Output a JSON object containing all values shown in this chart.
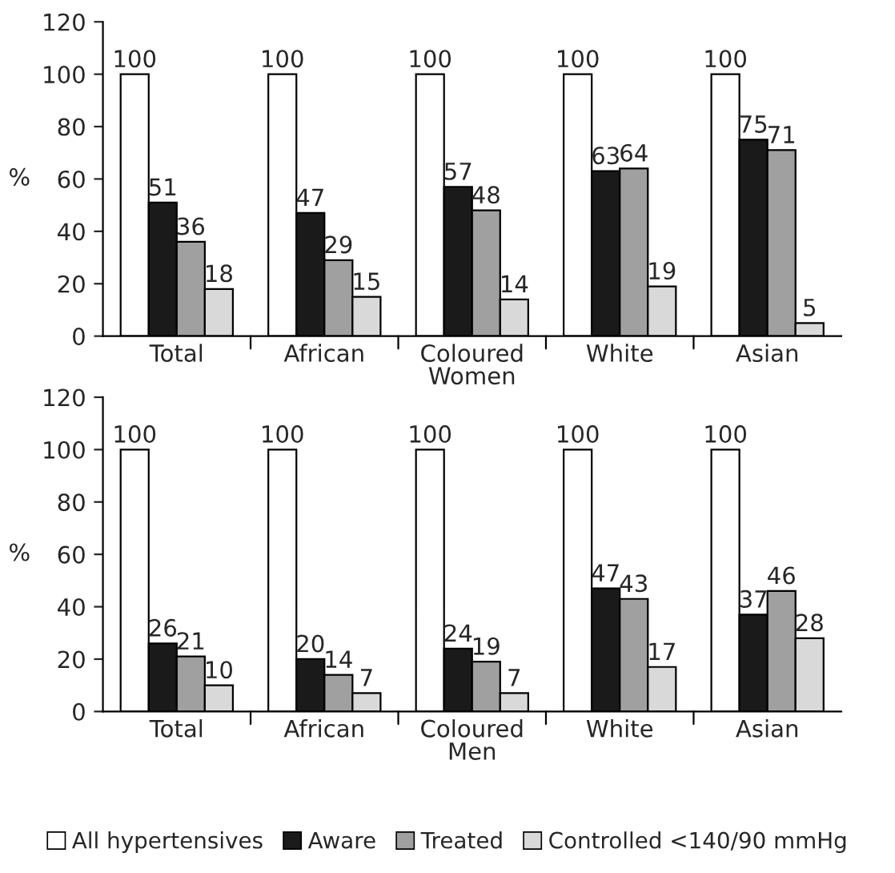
{
  "chart_data": [
    {
      "type": "bar",
      "xlabel": "Women",
      "ylabel": "%",
      "categories": [
        "Total",
        "African",
        "Coloured",
        "White",
        "Asian"
      ],
      "ylim": [
        0,
        120
      ],
      "yticks": [
        0,
        20,
        40,
        60,
        80,
        100,
        120
      ],
      "data_labels": true,
      "legend": false,
      "grid": false,
      "series": [
        {
          "color": "#ffffff",
          "values": [
            100,
            100,
            100,
            100,
            100
          ]
        },
        {
          "color": "#1a1a1a",
          "values": [
            51,
            47,
            57,
            63,
            75
          ]
        },
        {
          "color": "#a0a0a0",
          "values": [
            36,
            29,
            48,
            64,
            71
          ]
        },
        {
          "color": "#d9d9d9",
          "values": [
            18,
            15,
            14,
            19,
            5
          ]
        }
      ]
    },
    {
      "type": "bar",
      "xlabel": "Men",
      "ylabel": "%",
      "categories": [
        "Total",
        "African",
        "Coloured",
        "White",
        "Asian"
      ],
      "ylim": [
        0,
        120
      ],
      "yticks": [
        0,
        20,
        40,
        60,
        80,
        100,
        120
      ],
      "data_labels": true,
      "legend": "bottom",
      "grid": false,
      "series": [
        {
          "name": "All hypertensives",
          "color": "#ffffff",
          "values": [
            100,
            100,
            100,
            100,
            100
          ]
        },
        {
          "name": "Aware",
          "color": "#1a1a1a",
          "values": [
            26,
            20,
            24,
            47,
            37
          ]
        },
        {
          "name": "Treated",
          "color": "#a0a0a0",
          "values": [
            21,
            14,
            19,
            43,
            46
          ]
        },
        {
          "name": "Controlled <140/90 mmHg",
          "color": "#d9d9d9",
          "values": [
            10,
            7,
            7,
            17,
            28
          ]
        }
      ]
    }
  ]
}
